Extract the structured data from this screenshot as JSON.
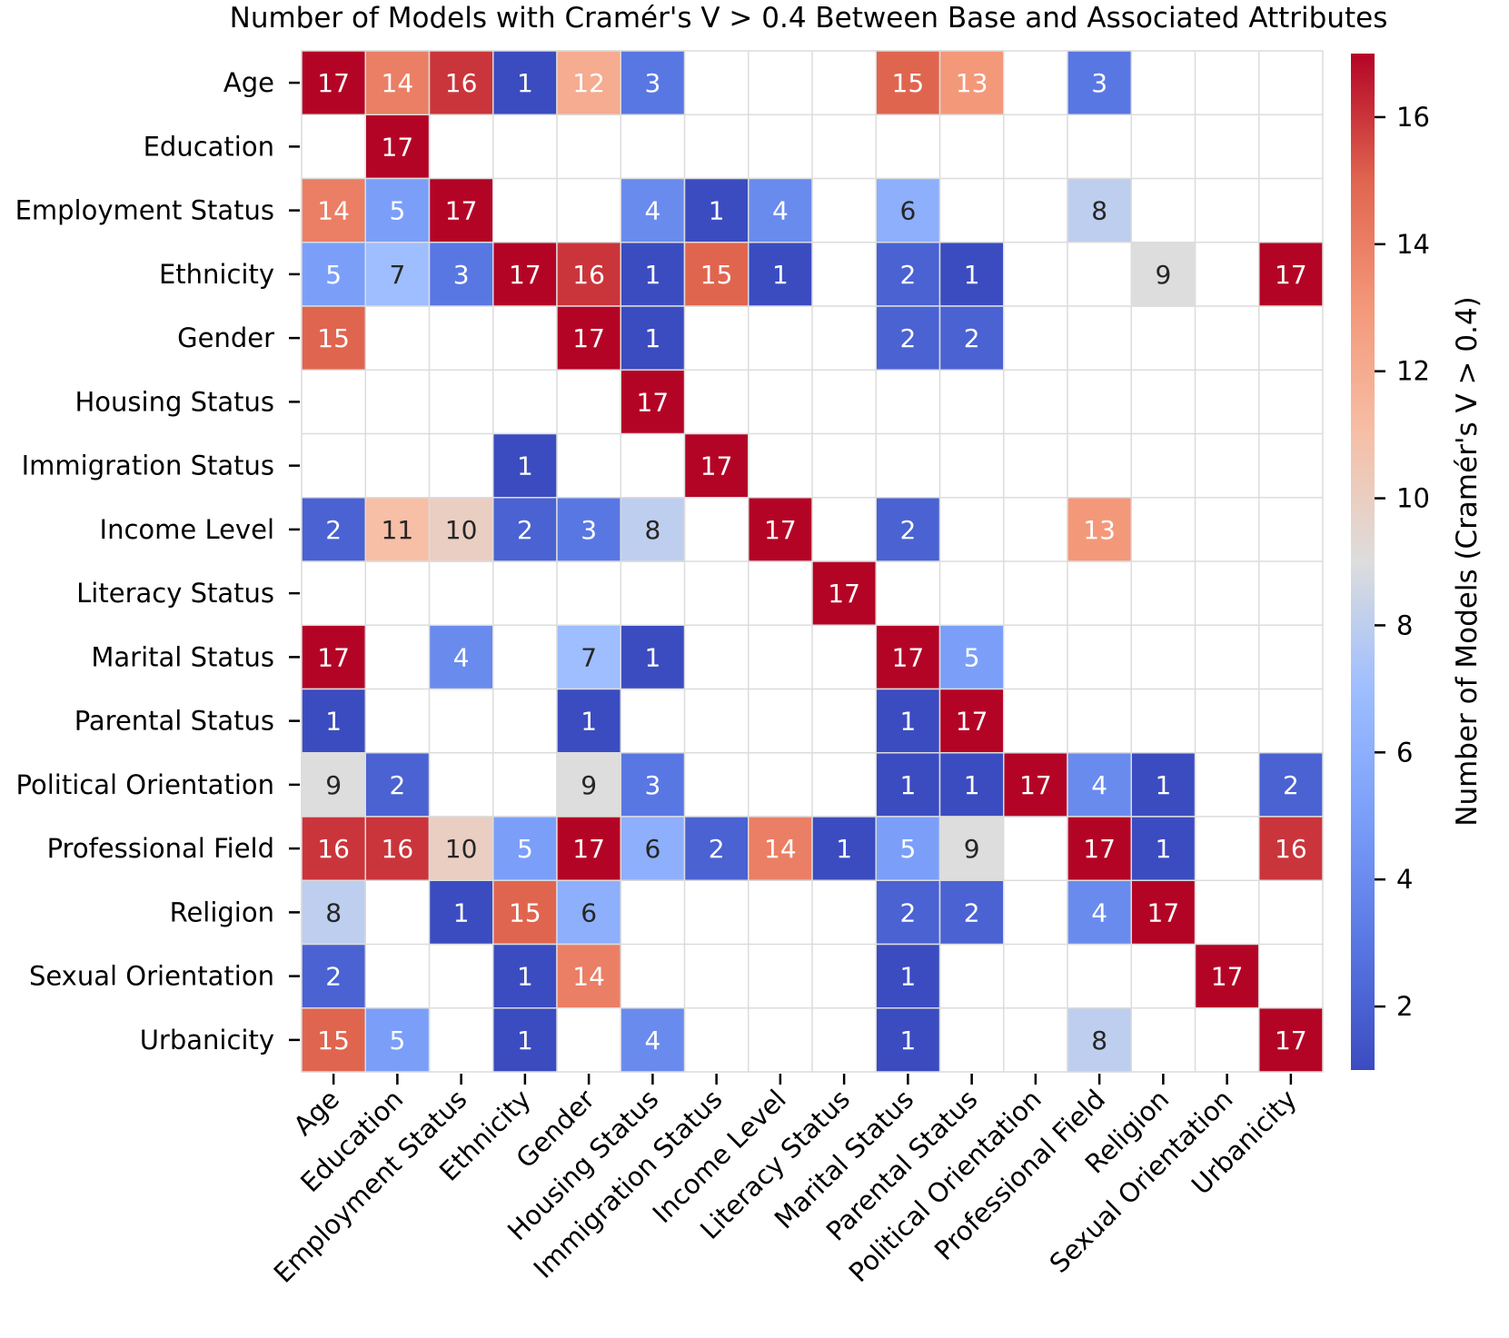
{
  "chart_data": {
    "type": "heatmap",
    "title": "Number of Models with Cramér's V > 0.4 Between Base and Associated Attributes",
    "colorbar_label": "Number of Models (Cramér's V > 0.4)",
    "colorbar_ticks": [
      2,
      4,
      6,
      8,
      10,
      12,
      14,
      16
    ],
    "vmin": 1,
    "vmax": 17,
    "colormap": "coolwarm",
    "rows": [
      "Age",
      "Education",
      "Employment Status",
      "Ethnicity",
      "Gender",
      "Housing Status",
      "Immigration Status",
      "Income Level",
      "Literacy Status",
      "Marital Status",
      "Parental Status",
      "Political Orientation",
      "Professional Field",
      "Religion",
      "Sexual Orientation",
      "Urbanicity"
    ],
    "columns": [
      "Age",
      "Education",
      "Employment Status",
      "Ethnicity",
      "Gender",
      "Housing Status",
      "Immigration Status",
      "Income Level",
      "Literacy Status",
      "Marital Status",
      "Parental Status",
      "Political Orientation",
      "Professional Field",
      "Religion",
      "Sexual Orientation",
      "Urbanicity"
    ],
    "values": [
      [
        17,
        14,
        16,
        1,
        12,
        3,
        null,
        null,
        null,
        15,
        13,
        null,
        3,
        null,
        null,
        null
      ],
      [
        null,
        17,
        null,
        null,
        null,
        null,
        null,
        null,
        null,
        null,
        null,
        null,
        null,
        null,
        null,
        null
      ],
      [
        14,
        5,
        17,
        null,
        null,
        4,
        1,
        4,
        null,
        6,
        null,
        null,
        8,
        null,
        null,
        null
      ],
      [
        5,
        7,
        3,
        17,
        16,
        1,
        15,
        1,
        null,
        2,
        1,
        null,
        null,
        9,
        null,
        17
      ],
      [
        15,
        null,
        null,
        null,
        17,
        1,
        null,
        null,
        null,
        2,
        2,
        null,
        null,
        null,
        null,
        null
      ],
      [
        null,
        null,
        null,
        null,
        null,
        17,
        null,
        null,
        null,
        null,
        null,
        null,
        null,
        null,
        null,
        null
      ],
      [
        null,
        null,
        null,
        1,
        null,
        null,
        17,
        null,
        null,
        null,
        null,
        null,
        null,
        null,
        null,
        null
      ],
      [
        2,
        11,
        10,
        2,
        3,
        8,
        null,
        17,
        null,
        2,
        null,
        null,
        13,
        null,
        null,
        null
      ],
      [
        null,
        null,
        null,
        null,
        null,
        null,
        null,
        null,
        17,
        null,
        null,
        null,
        null,
        null,
        null,
        null
      ],
      [
        17,
        null,
        4,
        null,
        7,
        1,
        null,
        null,
        null,
        17,
        5,
        null,
        null,
        null,
        null,
        null
      ],
      [
        1,
        null,
        null,
        null,
        1,
        null,
        null,
        null,
        null,
        1,
        17,
        null,
        null,
        null,
        null,
        null
      ],
      [
        9,
        2,
        null,
        null,
        9,
        3,
        null,
        null,
        null,
        1,
        1,
        17,
        4,
        1,
        null,
        2
      ],
      [
        16,
        16,
        10,
        5,
        17,
        6,
        2,
        14,
        1,
        5,
        9,
        null,
        17,
        1,
        null,
        16
      ],
      [
        8,
        null,
        1,
        15,
        6,
        null,
        null,
        null,
        null,
        2,
        2,
        null,
        4,
        17,
        null,
        null
      ],
      [
        2,
        null,
        null,
        1,
        14,
        null,
        null,
        null,
        null,
        1,
        null,
        null,
        null,
        null,
        17,
        null
      ],
      [
        15,
        5,
        null,
        1,
        null,
        4,
        null,
        null,
        null,
        1,
        null,
        null,
        8,
        null,
        null,
        17
      ]
    ]
  }
}
